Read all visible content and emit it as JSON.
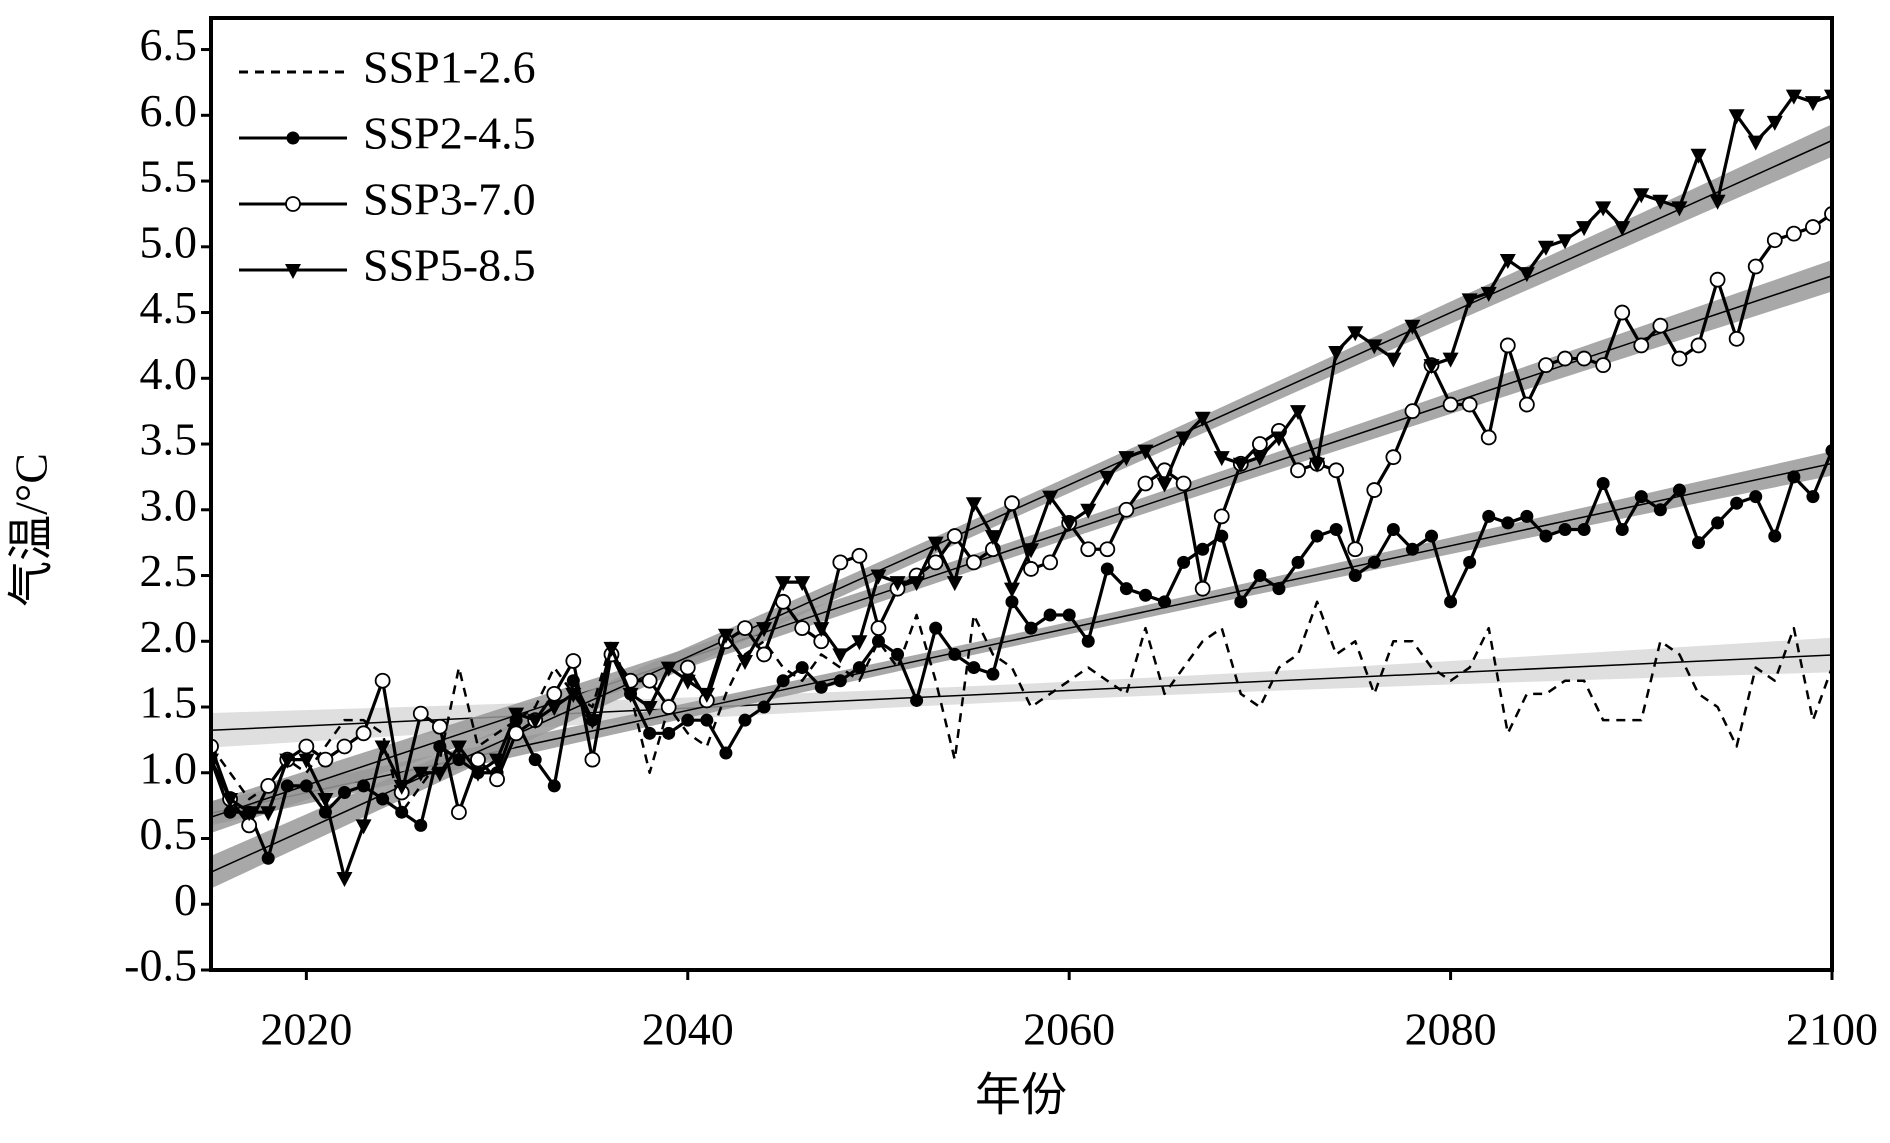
{
  "chart_data": {
    "type": "line",
    "xlabel": "年份",
    "ylabel": "气温/°C",
    "x": [
      2015,
      2016,
      2017,
      2018,
      2019,
      2020,
      2021,
      2022,
      2023,
      2024,
      2025,
      2026,
      2027,
      2028,
      2029,
      2030,
      2031,
      2032,
      2033,
      2034,
      2035,
      2036,
      2037,
      2038,
      2039,
      2040,
      2041,
      2042,
      2043,
      2044,
      2045,
      2046,
      2047,
      2048,
      2049,
      2050,
      2051,
      2052,
      2053,
      2054,
      2055,
      2056,
      2057,
      2058,
      2059,
      2060,
      2061,
      2062,
      2063,
      2064,
      2065,
      2066,
      2067,
      2068,
      2069,
      2070,
      2071,
      2072,
      2073,
      2074,
      2075,
      2076,
      2077,
      2078,
      2079,
      2080,
      2081,
      2082,
      2083,
      2084,
      2085,
      2086,
      2087,
      2088,
      2089,
      2090,
      2091,
      2092,
      2093,
      2094,
      2095,
      2096,
      2097,
      2098,
      2099,
      2100
    ],
    "series": [
      {
        "name": "SSP1-2.6",
        "color": "#000000",
        "dash": true,
        "marker": "none",
        "band_color": "#d9d9d9",
        "values": [
          1.2,
          1.0,
          0.8,
          0.9,
          1.1,
          1.0,
          1.2,
          1.4,
          1.4,
          1.3,
          0.7,
          0.9,
          1.1,
          1.8,
          1.2,
          1.3,
          1.4,
          1.5,
          1.8,
          1.6,
          1.5,
          2.0,
          1.6,
          1.0,
          1.5,
          1.3,
          1.2,
          1.6,
          1.9,
          2.0,
          1.8,
          1.7,
          1.9,
          1.8,
          1.7,
          2.0,
          1.8,
          2.2,
          1.7,
          1.1,
          2.2,
          1.9,
          1.8,
          1.5,
          1.6,
          1.7,
          1.8,
          1.7,
          1.6,
          2.1,
          1.6,
          1.8,
          2.0,
          2.1,
          1.6,
          1.5,
          1.8,
          1.9,
          2.3,
          1.9,
          2.0,
          1.6,
          2.0,
          2.0,
          1.8,
          1.7,
          1.8,
          2.1,
          1.3,
          1.6,
          1.6,
          1.7,
          1.7,
          1.4,
          1.4,
          1.4,
          2.0,
          1.9,
          1.6,
          1.5,
          1.2,
          1.8,
          1.7,
          2.1,
          1.4,
          1.8
        ]
      },
      {
        "name": "SSP2-4.5",
        "color": "#000000",
        "dash": false,
        "marker": "filled-circle",
        "band_color": "#999999",
        "values": [
          1.1,
          0.7,
          0.7,
          0.35,
          0.9,
          0.9,
          0.7,
          0.85,
          0.9,
          0.8,
          0.7,
          0.6,
          1.2,
          1.1,
          1.0,
          1.0,
          1.4,
          1.1,
          0.9,
          1.7,
          1.4,
          1.9,
          1.6,
          1.3,
          1.3,
          1.4,
          1.4,
          1.15,
          1.4,
          1.5,
          1.7,
          1.8,
          1.65,
          1.7,
          1.8,
          2.0,
          1.9,
          1.55,
          2.1,
          1.9,
          1.8,
          1.75,
          2.3,
          2.1,
          2.2,
          2.2,
          2.0,
          2.55,
          2.4,
          2.35,
          2.3,
          2.6,
          2.7,
          2.8,
          2.3,
          2.5,
          2.4,
          2.6,
          2.8,
          2.85,
          2.5,
          2.6,
          2.85,
          2.7,
          2.8,
          2.3,
          2.6,
          2.95,
          2.9,
          2.95,
          2.8,
          2.85,
          2.85,
          3.2,
          2.85,
          3.1,
          3.0,
          3.15,
          2.75,
          2.9,
          3.05,
          3.1,
          2.8,
          3.25,
          3.1,
          3.45
        ]
      },
      {
        "name": "SSP3-7.0",
        "color": "#000000",
        "dash": false,
        "marker": "open-circle",
        "band_color": "#999999",
        "values": [
          1.2,
          0.8,
          0.6,
          0.9,
          1.1,
          1.2,
          1.1,
          1.2,
          1.3,
          1.7,
          0.85,
          1.45,
          1.35,
          0.7,
          1.1,
          0.95,
          1.3,
          1.4,
          1.6,
          1.85,
          1.1,
          1.9,
          1.7,
          1.7,
          1.5,
          1.8,
          1.55,
          2.0,
          2.1,
          1.9,
          2.3,
          2.1,
          2.0,
          2.6,
          2.65,
          2.1,
          2.4,
          2.5,
          2.6,
          2.8,
          2.6,
          2.7,
          3.05,
          2.55,
          2.6,
          2.9,
          2.7,
          2.7,
          3.0,
          3.2,
          3.3,
          3.2,
          2.4,
          2.95,
          3.35,
          3.5,
          3.6,
          3.3,
          3.35,
          3.3,
          2.7,
          3.15,
          3.4,
          3.75,
          4.1,
          3.8,
          3.8,
          3.55,
          4.25,
          3.8,
          4.1,
          4.15,
          4.15,
          4.1,
          4.5,
          4.25,
          4.4,
          4.15,
          4.25,
          4.75,
          4.3,
          4.85,
          5.05,
          5.1,
          5.15,
          5.25
        ]
      },
      {
        "name": "SSP5-8.5",
        "color": "#000000",
        "dash": false,
        "marker": "triangle-down",
        "band_color": "#999999",
        "values": [
          1.1,
          0.8,
          0.7,
          0.7,
          1.1,
          1.1,
          0.8,
          0.2,
          0.6,
          1.2,
          0.9,
          1.0,
          1.0,
          1.2,
          1.0,
          1.1,
          1.45,
          1.4,
          1.5,
          1.6,
          1.4,
          1.95,
          1.6,
          1.5,
          1.8,
          1.7,
          1.6,
          2.05,
          1.85,
          2.1,
          2.45,
          2.45,
          2.1,
          1.9,
          2.0,
          2.5,
          2.45,
          2.45,
          2.75,
          2.45,
          3.05,
          2.8,
          2.4,
          2.7,
          3.1,
          2.9,
          3.0,
          3.25,
          3.4,
          3.45,
          3.2,
          3.55,
          3.7,
          3.4,
          3.35,
          3.4,
          3.55,
          3.75,
          3.35,
          4.2,
          4.35,
          4.25,
          4.15,
          4.4,
          4.1,
          4.15,
          4.6,
          4.65,
          4.9,
          4.8,
          5.0,
          5.05,
          5.15,
          5.3,
          5.15,
          5.4,
          5.35,
          5.3,
          5.7,
          5.35,
          6.0,
          5.8,
          5.95,
          6.15,
          6.1,
          6.15
        ]
      }
    ],
    "trend_lines": true,
    "xlim": [
      2015,
      2100
    ],
    "xticks": [
      2020,
      2040,
      2060,
      2080,
      2100
    ],
    "ylim": [
      -0.5,
      6.74
    ],
    "yticks": [
      -0.5,
      0,
      0.5,
      {
        "value": 1,
        "label": "1.0"
      },
      1.5,
      {
        "value": 2,
        "label": "2.0"
      },
      2.5,
      {
        "value": 3,
        "label": "3.0"
      },
      3.5,
      {
        "value": 4,
        "label": "4.0"
      },
      4.5,
      {
        "value": 5,
        "label": "5.0"
      },
      5.5,
      {
        "value": 6,
        "label": "6.0"
      },
      6.5
    ],
    "legend": "upper-left"
  }
}
